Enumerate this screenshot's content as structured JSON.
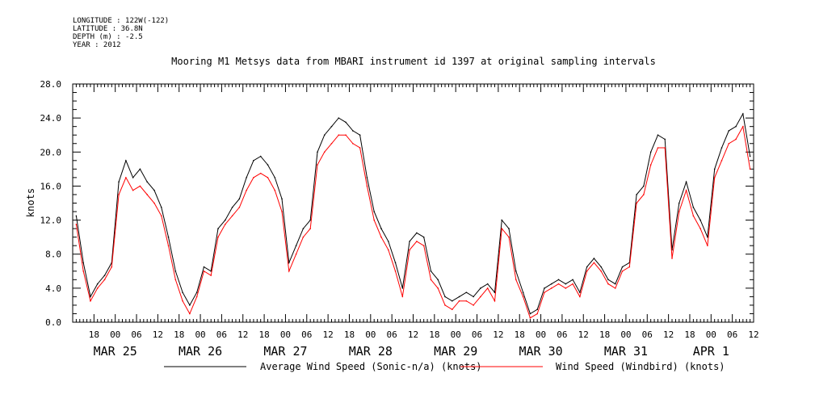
{
  "header": {
    "longitude": "LONGITUDE : 122W(-122)",
    "latitude": "LATITUDE : 36.8N",
    "depth": "DEPTH (m) : -2.5",
    "year": "YEAR : 2012"
  },
  "chart_data": {
    "type": "line",
    "title": "Mooring M1 Metsys data from MBARI instrument id 1397 at original sampling intervals",
    "ylabel": "knots",
    "xlabel": "",
    "ylim": [
      0,
      28
    ],
    "yticks": [
      0,
      4,
      8,
      12,
      16,
      20,
      24,
      28
    ],
    "ytick_labels": [
      "0.0",
      "4.0",
      "8.0",
      "12.0",
      "16.0",
      "20.0",
      "24.0",
      "28.0"
    ],
    "xlim_hours_from_mar24_12z": [
      0,
      192
    ],
    "x_hour_labels": [
      "18",
      "00",
      "06",
      "12",
      "18",
      "00",
      "06",
      "12",
      "18",
      "00",
      "06",
      "12",
      "18",
      "00",
      "06",
      "12",
      "18",
      "00",
      "06",
      "12",
      "18",
      "00",
      "06",
      "12",
      "18",
      "00",
      "06",
      "12",
      "18",
      "00",
      "06",
      "12"
    ],
    "x_day_labels": [
      {
        "label": "MAR 25",
        "hour": 12
      },
      {
        "label": "MAR 26",
        "hour": 36
      },
      {
        "label": "MAR 27",
        "hour": 60
      },
      {
        "label": "MAR 28",
        "hour": 84
      },
      {
        "label": "MAR 29",
        "hour": 108
      },
      {
        "label": "MAR 30",
        "hour": 132
      },
      {
        "label": "MAR 31",
        "hour": 156
      },
      {
        "label": "APR  1",
        "hour": 180
      }
    ],
    "x": [
      1,
      3,
      5,
      7,
      9,
      11,
      13,
      15,
      17,
      19,
      21,
      23,
      25,
      27,
      29,
      31,
      33,
      35,
      37,
      39,
      41,
      43,
      45,
      47,
      49,
      51,
      53,
      55,
      57,
      59,
      61,
      63,
      65,
      67,
      69,
      71,
      73,
      75,
      77,
      79,
      81,
      83,
      85,
      87,
      89,
      91,
      93,
      95,
      97,
      99,
      101,
      103,
      105,
      107,
      109,
      111,
      113,
      115,
      117,
      119,
      121,
      123,
      125,
      127,
      129,
      131,
      133,
      135,
      137,
      139,
      141,
      143,
      145,
      147,
      149,
      151,
      153,
      155,
      157,
      159,
      161,
      163,
      165,
      167,
      169,
      171,
      173,
      175,
      177,
      179,
      181,
      183,
      185,
      187,
      189,
      191
    ],
    "series": [
      {
        "name": "Average Wind Speed (Sonic-n/a) (knots)",
        "color": "#000000",
        "values": [
          12.5,
          7.0,
          3.0,
          4.5,
          5.5,
          7.0,
          16.5,
          19.0,
          17.0,
          18.0,
          16.5,
          15.5,
          13.5,
          10.0,
          6.0,
          3.5,
          2.0,
          3.5,
          6.5,
          6.0,
          11.0,
          12.0,
          13.5,
          14.5,
          17.0,
          19.0,
          19.5,
          18.5,
          17.0,
          14.5,
          7.0,
          9.0,
          11.0,
          12.0,
          20.0,
          22.0,
          23.0,
          24.0,
          23.5,
          22.5,
          22.0,
          17.0,
          13.0,
          11.0,
          9.5,
          7.0,
          4.0,
          9.5,
          10.5,
          10.0,
          6.0,
          5.0,
          3.0,
          2.5,
          3.0,
          3.5,
          3.0,
          4.0,
          4.5,
          3.5,
          12.0,
          11.0,
          6.0,
          3.5,
          1.0,
          1.5,
          4.0,
          4.5,
          5.0,
          4.5,
          5.0,
          3.5,
          6.5,
          7.5,
          6.5,
          5.0,
          4.5,
          6.5,
          7.0,
          15.0,
          16.0,
          20.0,
          22.0,
          21.5,
          8.5,
          14.0,
          16.5,
          13.5,
          12.0,
          10.0,
          18.0,
          20.5,
          22.5,
          23.0,
          24.5,
          19.5
        ]
      },
      {
        "name": "Wind Speed (Windbird) (knots)",
        "color": "#ff0000",
        "values": [
          11.5,
          6.0,
          2.5,
          4.0,
          5.0,
          6.5,
          15.0,
          17.0,
          15.5,
          16.0,
          15.0,
          14.0,
          12.5,
          9.0,
          5.0,
          2.5,
          1.0,
          3.0,
          6.0,
          5.5,
          10.0,
          11.5,
          12.5,
          13.5,
          15.5,
          17.0,
          17.5,
          17.0,
          15.5,
          13.0,
          6.0,
          8.0,
          10.0,
          11.0,
          18.5,
          20.0,
          21.0,
          22.0,
          22.0,
          21.0,
          20.5,
          16.0,
          12.0,
          10.0,
          8.5,
          6.0,
          3.0,
          8.5,
          9.5,
          9.0,
          5.0,
          4.0,
          2.0,
          1.5,
          2.5,
          2.5,
          2.0,
          3.0,
          4.0,
          2.5,
          11.0,
          10.0,
          5.0,
          3.0,
          0.5,
          1.0,
          3.5,
          4.0,
          4.5,
          4.0,
          4.5,
          3.0,
          6.0,
          7.0,
          6.0,
          4.5,
          4.0,
          6.0,
          6.5,
          14.0,
          15.0,
          18.5,
          20.5,
          20.5,
          7.5,
          13.0,
          15.5,
          12.5,
          11.0,
          9.0,
          17.0,
          19.0,
          21.0,
          21.5,
          23.0,
          18.0
        ]
      }
    ],
    "legend_placement": "bottom",
    "grid": false
  }
}
